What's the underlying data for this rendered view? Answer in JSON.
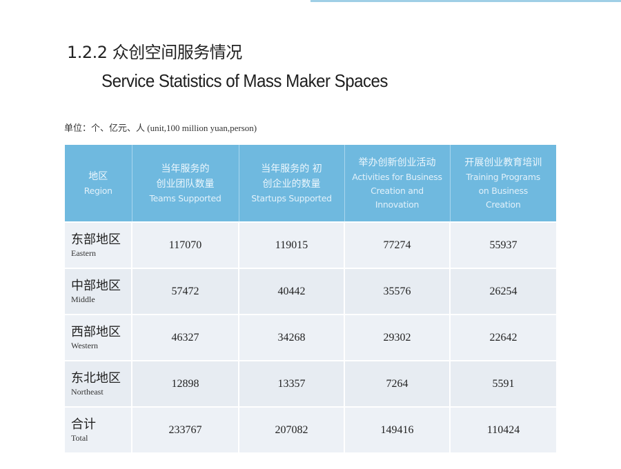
{
  "title_zh": "1.2.2 众创空间服务情况",
  "title_en": "Service Statistics of Mass Maker Spaces",
  "unit_note": "单位：个、亿元、人 (unit,100 million yuan,person)",
  "columns": [
    {
      "zh": "地区",
      "en": "Region"
    },
    {
      "zh": "当年服务的 创业团队数量",
      "en": "Teams Supported"
    },
    {
      "zh": "当年服务的 初创企业的数量",
      "en": "Startups Supported"
    },
    {
      "zh": "举办创新创业活动",
      "en": "Activities for Business Creation and Innovation"
    },
    {
      "zh": "开展创业教育培训",
      "en": "Training Programs on Business Creation"
    }
  ],
  "rows": [
    {
      "region_zh": "东部地区",
      "region_en": "Eastern",
      "teams": "117070",
      "startups": "119015",
      "activities": "77274",
      "training": "55937"
    },
    {
      "region_zh": "中部地区",
      "region_en": "Middle",
      "teams": "57472",
      "startups": "40442",
      "activities": "35576",
      "training": "26254"
    },
    {
      "region_zh": "西部地区",
      "region_en": "Western",
      "teams": "46327",
      "startups": "34268",
      "activities": "29302",
      "training": "22642"
    },
    {
      "region_zh": "东北地区",
      "region_en": "Northeast",
      "teams": "12898",
      "startups": "13357",
      "activities": "7264",
      "training": "5591"
    },
    {
      "region_zh": "合计",
      "region_en": "Total",
      "teams": "233767",
      "startups": "207082",
      "activities": "149416",
      "training": "110424"
    }
  ],
  "colors": {
    "header_bg": "#6fb9df",
    "row_bg": "#edf1f6"
  }
}
